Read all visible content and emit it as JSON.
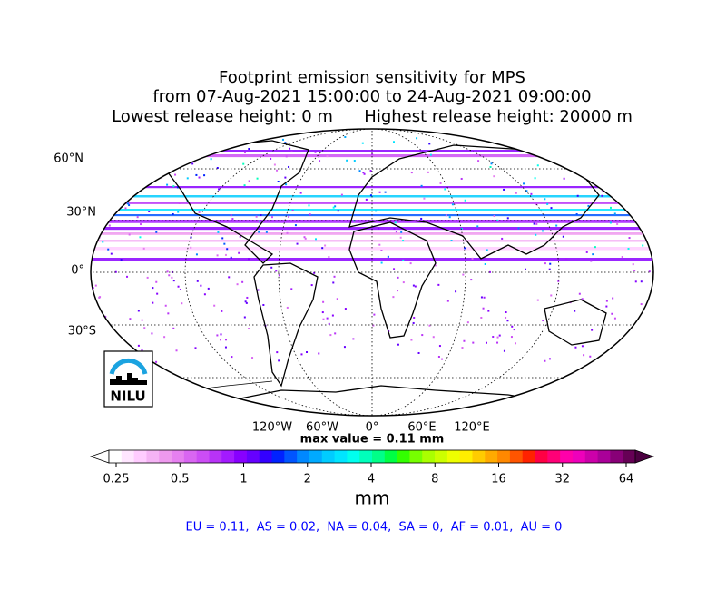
{
  "title": [
    "Footprint emission sensitivity for MPS",
    "from 07-Aug-2021 15:00:00 to 24-Aug-2021 09:00:00",
    "Lowest release height: 0 m      Highest release height: 20000 m"
  ],
  "map": {
    "lat_labels": [
      "60°N",
      "30°N",
      "0°",
      "30°S"
    ],
    "lon_labels": [
      "120°W",
      "60°W",
      "0°",
      "60°E",
      "120°E"
    ],
    "logo": "NILU"
  },
  "max_value_text": "max value = 0.11 mm",
  "colorbar": {
    "ticks": [
      0.25,
      0.5,
      1,
      2,
      4,
      8,
      16,
      32,
      64
    ],
    "scale": "log",
    "label": "mm"
  },
  "regional_values": "EU = 0.11,  AS = 0.02,  NA = 0.04,  SA = 0,  AF = 0.01,  AU = 0"
}
